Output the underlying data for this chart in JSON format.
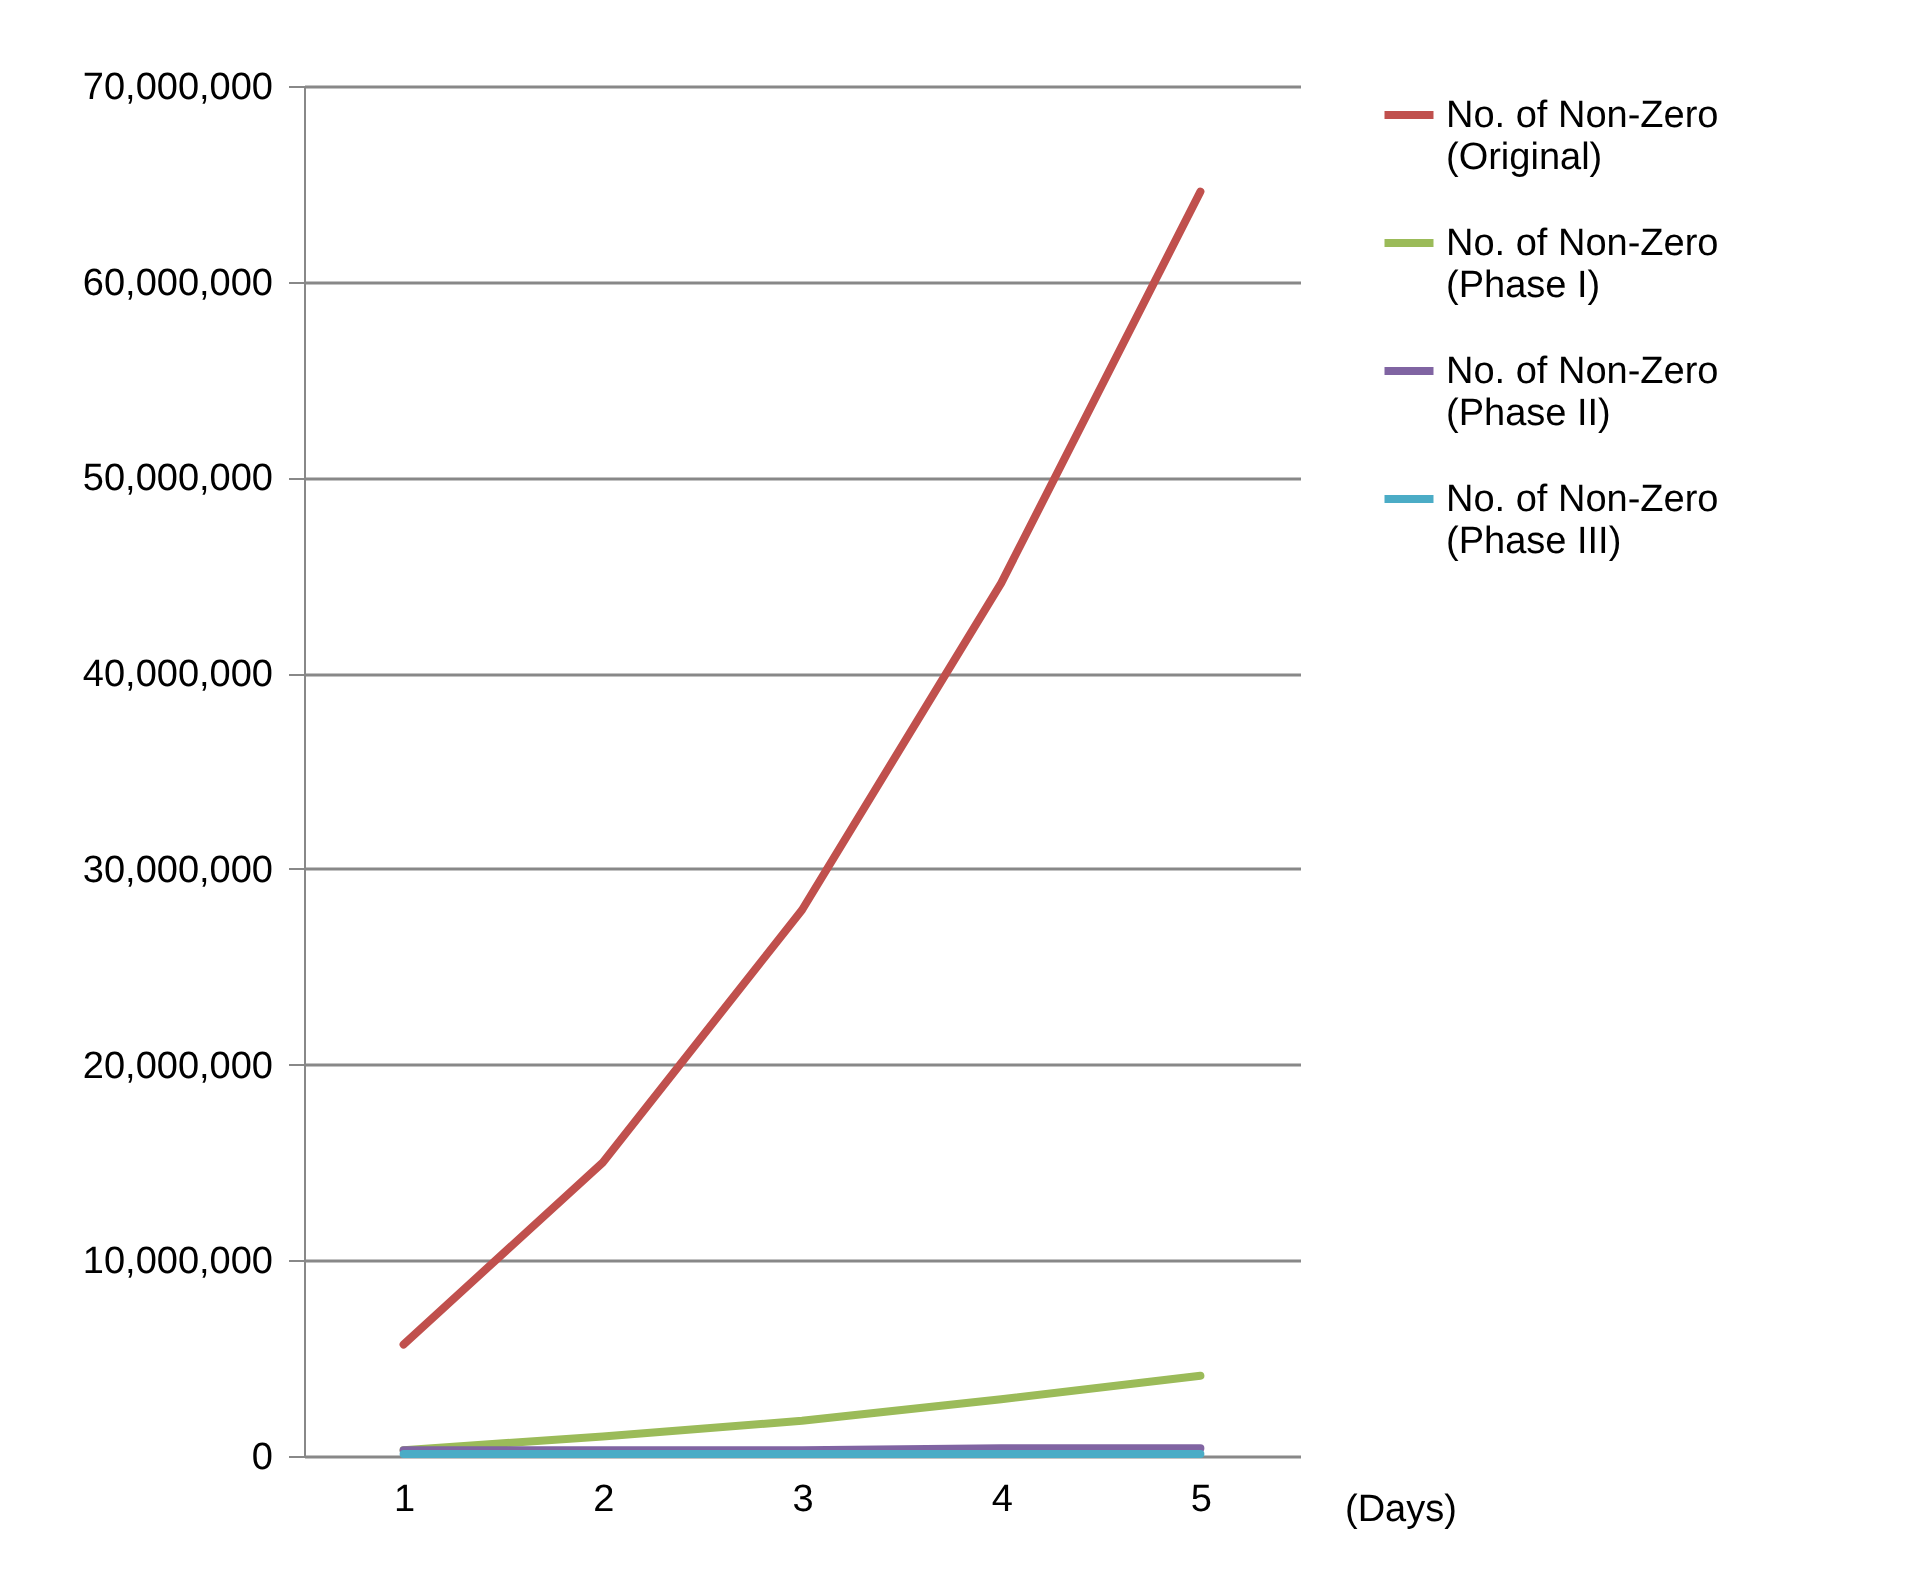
{
  "chart_data": {
    "type": "line",
    "xlabel": "(Days)",
    "categories": [
      "1",
      "2",
      "3",
      "4",
      "5"
    ],
    "series": [
      {
        "name": "No. of Non-Zero (Original)",
        "color": "#c0504d",
        "values": [
          5700000,
          15000000,
          27900000,
          44600000,
          64600000
        ]
      },
      {
        "name": "No. of Non-Zero (Phase I)",
        "color": "#9bbb59",
        "values": [
          300000,
          1000000,
          1800000,
          2900000,
          4100000
        ]
      },
      {
        "name": "No. of Non-Zero (Phase II)",
        "color": "#8064a2",
        "values": [
          300000,
          300000,
          300000,
          400000,
          400000
        ]
      },
      {
        "name": "No. of Non-Zero (Phase III)",
        "color": "#4bacc6",
        "values": [
          100000,
          100000,
          100000,
          100000,
          100000
        ]
      }
    ],
    "ylim": [
      0,
      70000000
    ],
    "yticks": [
      0,
      {
        "value": 10000000,
        "label": "10,000,000"
      },
      {
        "value": 20000000,
        "label": "20,000,000"
      },
      {
        "value": 30000000,
        "label": "30,000,000"
      },
      {
        "value": 40000000,
        "label": "40,000,000"
      },
      {
        "value": 50000000,
        "label": "50,000,000"
      },
      {
        "value": 60000000,
        "label": "60,000,000"
      },
      {
        "value": 70000000,
        "label": "70,000,000"
      }
    ],
    "grid": "y",
    "legend": "right",
    "marker": "none",
    "line_style": "solid"
  }
}
